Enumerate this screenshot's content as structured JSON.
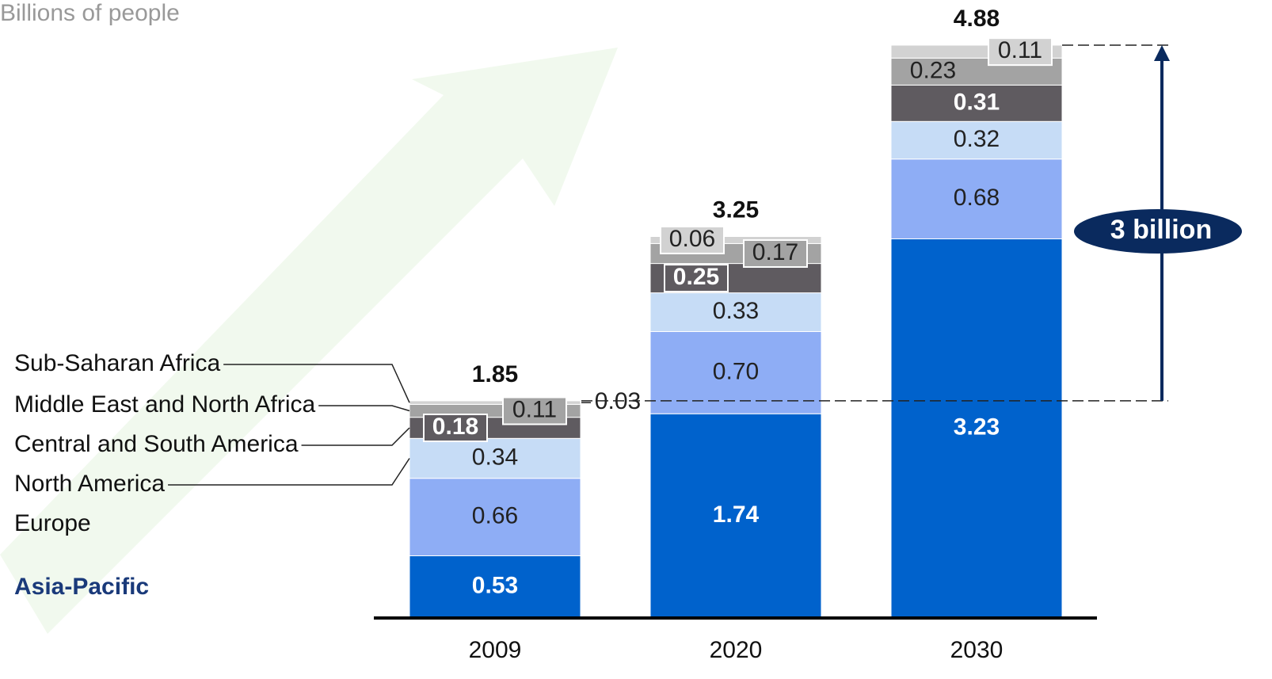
{
  "chart_data": {
    "type": "stacked-bar",
    "y_label": "Billions of people",
    "categories": [
      "2009",
      "2020",
      "2030"
    ],
    "series": [
      {
        "name": "Asia-Pacific",
        "color": "#0062cc",
        "values": [
          0.53,
          1.74,
          3.23
        ],
        "value_labels": [
          "0.53",
          "1.74",
          "3.23"
        ]
      },
      {
        "name": "Europe",
        "color": "#8eadf5",
        "values": [
          0.66,
          0.7,
          0.68
        ],
        "value_labels": [
          "0.66",
          "0.70",
          "0.68"
        ]
      },
      {
        "name": "North America",
        "color": "#c6dcf6",
        "values": [
          0.34,
          0.33,
          0.32
        ],
        "value_labels": [
          "0.34",
          "0.33",
          "0.32"
        ]
      },
      {
        "name": "Central and South America",
        "color": "#5f5b60",
        "values": [
          0.18,
          0.25,
          0.31
        ],
        "value_labels": [
          "0.18",
          "0.25",
          "0.31"
        ]
      },
      {
        "name": "Middle East and North Africa",
        "color": "#a3a3a3",
        "values": [
          0.11,
          0.17,
          0.23
        ],
        "value_labels": [
          "0.11",
          "0.17",
          "0.23"
        ]
      },
      {
        "name": "Sub-Saharan Africa",
        "color": "#d2d2d2",
        "values": [
          0.03,
          0.06,
          0.11
        ],
        "value_labels": [
          "0.03",
          "0.06",
          "0.11"
        ]
      }
    ],
    "totals": [
      1.85,
      3.25,
      4.88
    ],
    "annotation": "3 billion"
  }
}
